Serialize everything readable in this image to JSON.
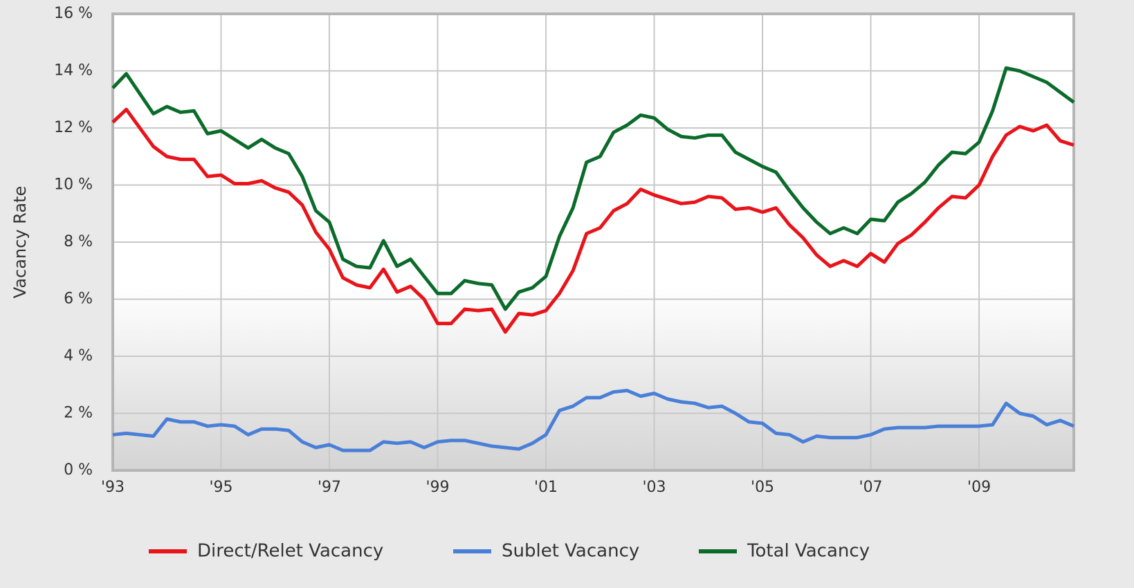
{
  "chart_data": {
    "type": "line",
    "y_label": "Vacancy Rate",
    "x": [
      1993,
      1993.25,
      1993.5,
      1993.75,
      1994,
      1994.25,
      1994.5,
      1994.75,
      1995,
      1995.25,
      1995.5,
      1995.75,
      1996,
      1996.25,
      1996.5,
      1996.75,
      1997,
      1997.25,
      1997.5,
      1997.75,
      1998,
      1998.25,
      1998.5,
      1998.75,
      1999,
      1999.25,
      1999.5,
      1999.75,
      2000,
      2000.25,
      2000.5,
      2000.75,
      2001,
      2001.25,
      2001.5,
      2001.75,
      2002,
      2002.25,
      2002.5,
      2002.75,
      2003,
      2003.25,
      2003.5,
      2003.75,
      2004,
      2004.25,
      2004.5,
      2004.75,
      2005,
      2005.25,
      2005.5,
      2005.75,
      2006,
      2006.25,
      2006.5,
      2006.75,
      2007,
      2007.25,
      2007.5,
      2007.75,
      2008,
      2008.25,
      2008.5,
      2008.75,
      2009,
      2009.25,
      2009.5,
      2009.75,
      2010,
      2010.25,
      2010.5,
      2010.75
    ],
    "series": [
      {
        "name": "Direct/Relet Vacancy",
        "color": "#e8141a",
        "values": [
          12.2,
          12.65,
          12.0,
          11.35,
          11.0,
          10.9,
          10.9,
          10.3,
          10.35,
          10.05,
          10.05,
          10.15,
          9.9,
          9.75,
          9.3,
          8.35,
          7.75,
          6.75,
          6.5,
          6.4,
          7.05,
          6.25,
          6.45,
          6.0,
          5.15,
          5.15,
          5.65,
          5.6,
          5.65,
          4.85,
          5.5,
          5.45,
          5.6,
          6.2,
          7.0,
          8.3,
          8.5,
          9.1,
          9.35,
          9.85,
          9.65,
          9.5,
          9.35,
          9.4,
          9.6,
          9.55,
          9.15,
          9.2,
          9.05,
          9.2,
          8.6,
          8.15,
          7.55,
          7.15,
          7.35,
          7.15,
          7.6,
          7.3,
          7.95,
          8.25,
          8.7,
          9.2,
          9.6,
          9.55,
          10.0,
          11.0,
          11.75,
          12.05,
          11.9,
          12.1,
          11.55,
          11.4
        ]
      },
      {
        "name": "Sublet Vacancy",
        "color": "#4a7fd8",
        "values": [
          1.25,
          1.3,
          1.25,
          1.2,
          1.8,
          1.7,
          1.7,
          1.55,
          1.6,
          1.55,
          1.25,
          1.45,
          1.45,
          1.4,
          1.0,
          0.8,
          0.9,
          0.7,
          0.7,
          0.7,
          1.0,
          0.95,
          1.0,
          0.8,
          1.0,
          1.05,
          1.05,
          0.95,
          0.85,
          0.8,
          0.75,
          0.95,
          1.25,
          2.1,
          2.25,
          2.55,
          2.55,
          2.75,
          2.8,
          2.6,
          2.7,
          2.5,
          2.4,
          2.35,
          2.2,
          2.25,
          2.0,
          1.7,
          1.65,
          1.3,
          1.25,
          1.0,
          1.2,
          1.15,
          1.15,
          1.15,
          1.25,
          1.45,
          1.5,
          1.5,
          1.5,
          1.55,
          1.55,
          1.55,
          1.55,
          1.6,
          2.35,
          2.0,
          1.9,
          1.6,
          1.75,
          1.55
        ]
      },
      {
        "name": "Total Vacancy",
        "color": "#0b6b2a",
        "values": [
          13.4,
          13.9,
          13.2,
          12.5,
          12.75,
          12.55,
          12.6,
          11.8,
          11.9,
          11.6,
          11.3,
          11.6,
          11.3,
          11.1,
          10.3,
          9.1,
          8.7,
          7.4,
          7.15,
          7.1,
          8.05,
          7.15,
          7.4,
          6.8,
          6.2,
          6.2,
          6.65,
          6.55,
          6.5,
          5.65,
          6.25,
          6.4,
          6.8,
          8.2,
          9.2,
          10.8,
          11.0,
          11.85,
          12.1,
          12.45,
          12.35,
          11.95,
          11.7,
          11.65,
          11.75,
          11.75,
          11.15,
          10.9,
          10.65,
          10.45,
          9.8,
          9.2,
          8.7,
          8.3,
          8.5,
          8.3,
          8.8,
          8.75,
          9.4,
          9.7,
          10.1,
          10.7,
          11.15,
          11.1,
          11.5,
          12.6,
          14.1,
          14.0,
          13.8,
          13.6,
          13.25,
          12.9
        ]
      }
    ],
    "xlim": [
      1993,
      2010.75
    ],
    "ylim": [
      0,
      16
    ],
    "xticks": [
      {
        "value": 1993,
        "label": "'93"
      },
      {
        "value": 1995,
        "label": "'95"
      },
      {
        "value": 1997,
        "label": "'97"
      },
      {
        "value": 1999,
        "label": "'99"
      },
      {
        "value": 2001,
        "label": "'01"
      },
      {
        "value": 2003,
        "label": "'03"
      },
      {
        "value": 2005,
        "label": "'05"
      },
      {
        "value": 2007,
        "label": "'07"
      },
      {
        "value": 2009,
        "label": "'09"
      }
    ],
    "yticks": [
      {
        "value": 0,
        "label": "0 %"
      },
      {
        "value": 2,
        "label": "2 %"
      },
      {
        "value": 4,
        "label": "4 %"
      },
      {
        "value": 6,
        "label": "6 %"
      },
      {
        "value": 8,
        "label": "8 %"
      },
      {
        "value": 10,
        "label": "10 %"
      },
      {
        "value": 12,
        "label": "12 %"
      },
      {
        "value": 14,
        "label": "14 %"
      },
      {
        "value": 16,
        "label": "16 %"
      }
    ],
    "grid": true,
    "legend": "bottom"
  }
}
